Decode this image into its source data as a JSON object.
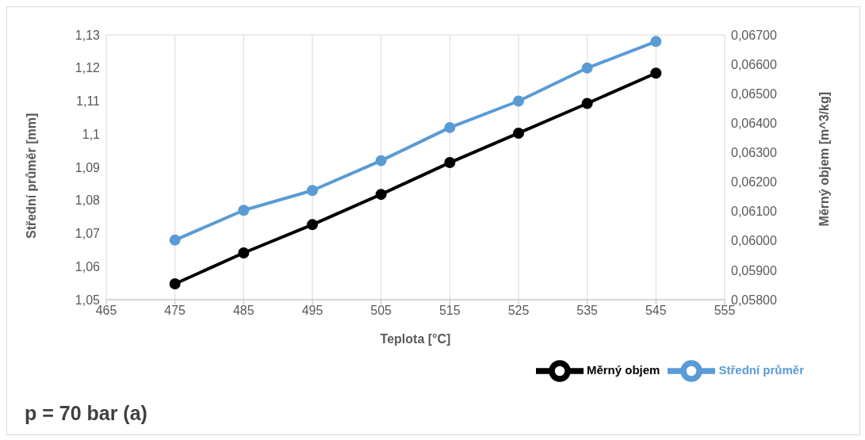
{
  "chart_data": {
    "type": "line",
    "xlabel": "Teplota [°C]",
    "ylabel": "Střední průměr [mm]",
    "y2label": "Měrný objem [m^3/kg]",
    "x": [
      475,
      485,
      495,
      505,
      515,
      525,
      535,
      545
    ],
    "series": [
      {
        "name": "Střední průměr",
        "color": "#5b9bd5",
        "values": [
          1.068,
          1.077,
          1.083,
          1.092,
          1.102,
          1.11,
          1.12,
          1.128
        ]
      },
      {
        "name": "Měrný objem",
        "color": "#000000",
        "axis": "y2",
        "values": [
          0.05854,
          0.05959,
          0.06055,
          0.06158,
          0.06266,
          0.06366,
          0.06467,
          0.0657
        ]
      }
    ],
    "xlim": [
      465,
      555
    ],
    "xticks": [
      465,
      475,
      485,
      495,
      505,
      515,
      525,
      535,
      545,
      555
    ],
    "ylim": [
      1.05,
      1.13
    ],
    "yticks": [
      {
        "value": 1.05,
        "label": "1,05"
      },
      {
        "value": 1.06,
        "label": "1,06"
      },
      {
        "value": 1.07,
        "label": "1,07"
      },
      {
        "value": 1.08,
        "label": "1,08"
      },
      {
        "value": 1.09,
        "label": "1,09"
      },
      {
        "value": 1.1,
        "label": "1,1"
      },
      {
        "value": 1.11,
        "label": "1,11"
      },
      {
        "value": 1.12,
        "label": "1,12"
      },
      {
        "value": 1.13,
        "label": "1,13"
      }
    ],
    "y2lim": [
      0.058,
      0.067
    ],
    "y2ticks": [
      {
        "value": 0.058,
        "label": "0,05800"
      },
      {
        "value": 0.059,
        "label": "0,05900"
      },
      {
        "value": 0.06,
        "label": "0,06000"
      },
      {
        "value": 0.061,
        "label": "0,06100"
      },
      {
        "value": 0.062,
        "label": "0,06200"
      },
      {
        "value": 0.063,
        "label": "0,06300"
      },
      {
        "value": 0.064,
        "label": "0,06400"
      },
      {
        "value": 0.065,
        "label": "0,06500"
      },
      {
        "value": 0.066,
        "label": "0,06600"
      },
      {
        "value": 0.067,
        "label": "0,06700"
      }
    ],
    "annotations": [
      "p = 70 bar (a)"
    ],
    "grid": true,
    "legend": "bottom right",
    "marker": "circle",
    "line_style": "solid"
  }
}
